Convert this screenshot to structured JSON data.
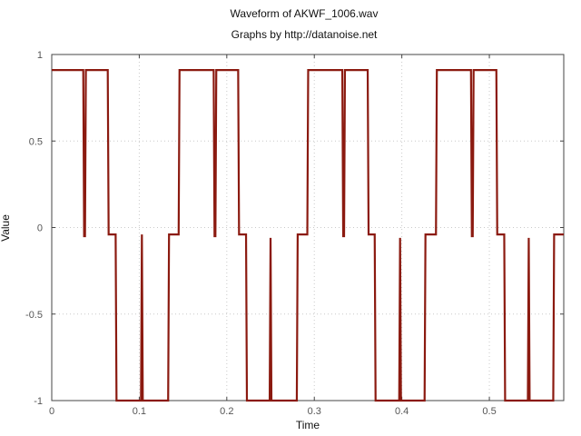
{
  "chart_data": {
    "type": "line",
    "title": "Waveform of AKWF_1006.wav",
    "subtitle": "Graphs by http://datanoise.net",
    "xlabel": "Time",
    "ylabel": "Value",
    "xlim": [
      0,
      0.585
    ],
    "ylim": [
      -1,
      1
    ],
    "xticks": [
      0,
      0.1,
      0.2,
      0.3,
      0.4,
      0.5
    ],
    "xtick_labels": [
      "0",
      "0.1",
      "0.2",
      "0.3",
      "0.4",
      "0.5"
    ],
    "yticks": [
      1,
      0.5,
      0,
      -0.5,
      -1
    ],
    "ytick_labels": [
      "1",
      "0.5",
      "0",
      "-0.5",
      "-1"
    ],
    "grid": true,
    "line_color": "#8b1a10",
    "series": [
      {
        "x": [
          0,
          0.036,
          0.037,
          0.038,
          0.039,
          0.064,
          0.065,
          0.073,
          0.074,
          0.102,
          0.103,
          0.104,
          0.105,
          0.133,
          0.134,
          0.145,
          0.146,
          0.185,
          0.186,
          0.187,
          0.188,
          0.213,
          0.214,
          0.222,
          0.223,
          0.249,
          0.25,
          0.251,
          0.252,
          0.28,
          0.281,
          0.292,
          0.293,
          0.332,
          0.333,
          0.334,
          0.335,
          0.361,
          0.362,
          0.369,
          0.37,
          0.397,
          0.398,
          0.399,
          0.4,
          0.426,
          0.427,
          0.439,
          0.44,
          0.479,
          0.48,
          0.481,
          0.482,
          0.508,
          0.509,
          0.517,
          0.518,
          0.544,
          0.545,
          0.546,
          0.547,
          0.573,
          0.574,
          0.585
        ],
        "y": [
          0.91,
          0.91,
          -0.05,
          -0.05,
          0.91,
          0.91,
          -0.04,
          -0.04,
          -1,
          -1,
          -0.04,
          -1,
          -1,
          -1,
          -0.04,
          -0.04,
          0.91,
          0.91,
          -0.05,
          -0.05,
          0.91,
          0.91,
          -0.04,
          -0.04,
          -1,
          -1,
          -0.06,
          -1,
          -1,
          -1,
          -0.04,
          -0.04,
          0.91,
          0.91,
          -0.05,
          -0.05,
          0.91,
          0.91,
          -0.04,
          -0.04,
          -1,
          -1,
          -0.06,
          -1,
          -1,
          -1,
          -0.04,
          -0.04,
          0.91,
          0.91,
          -0.05,
          -0.05,
          0.91,
          0.91,
          -0.04,
          -0.04,
          -1,
          -1,
          -0.06,
          -1,
          -1,
          -1,
          -0.04,
          -0.04
        ]
      }
    ]
  }
}
